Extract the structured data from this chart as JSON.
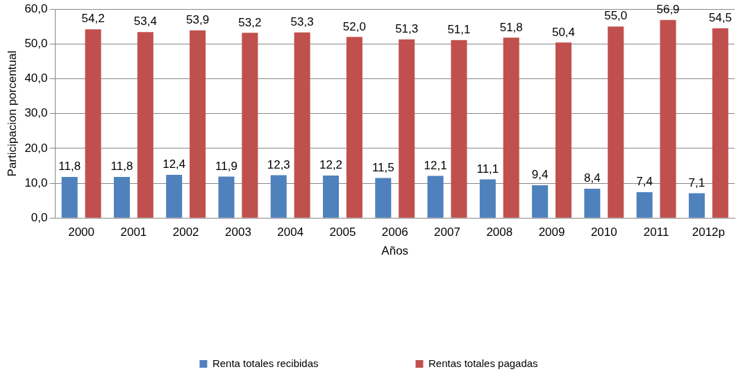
{
  "chart_data": {
    "type": "bar",
    "xlabel": "Años",
    "ylabel": "Participacion porcentual",
    "categories": [
      "2000",
      "2001",
      "2002",
      "2003",
      "2004",
      "2005",
      "2006",
      "2007",
      "2008",
      "2009",
      "2010",
      "2011",
      "2012p"
    ],
    "series": [
      {
        "name": "Renta totales recibidas",
        "color": "#4f81bd",
        "values": [
          11.8,
          11.8,
          12.4,
          11.9,
          12.3,
          12.2,
          11.5,
          12.1,
          11.1,
          9.4,
          8.4,
          7.4,
          7.1
        ],
        "value_labels": [
          "11,8",
          "11,8",
          "12,4",
          "11,9",
          "12,3",
          "12,2",
          "11,5",
          "12,1",
          "11,1",
          "9,4",
          "8,4",
          "7,4",
          "7,1"
        ]
      },
      {
        "name": "Rentas totales pagadas",
        "color": "#c0504d",
        "values": [
          54.2,
          53.4,
          53.9,
          53.2,
          53.3,
          52.0,
          51.3,
          51.1,
          51.8,
          50.4,
          55.0,
          56.9,
          54.5
        ],
        "value_labels": [
          "54,2",
          "53,4",
          "53,9",
          "53,2",
          "53,3",
          "52,0",
          "51,3",
          "51,1",
          "51,8",
          "50,4",
          "55,0",
          "56,9",
          "54,5"
        ]
      }
    ],
    "ylim": [
      0,
      60
    ],
    "yticks": [
      {
        "value": 0,
        "label": "0,0"
      },
      {
        "value": 10,
        "label": "10,0"
      },
      {
        "value": 20,
        "label": "20,0"
      },
      {
        "value": 30,
        "label": "30,0"
      },
      {
        "value": 40,
        "label": "40,0"
      },
      {
        "value": 50,
        "label": "50,0"
      },
      {
        "value": 60,
        "label": "60,0"
      }
    ],
    "grid": "y",
    "legend": "bottom"
  }
}
